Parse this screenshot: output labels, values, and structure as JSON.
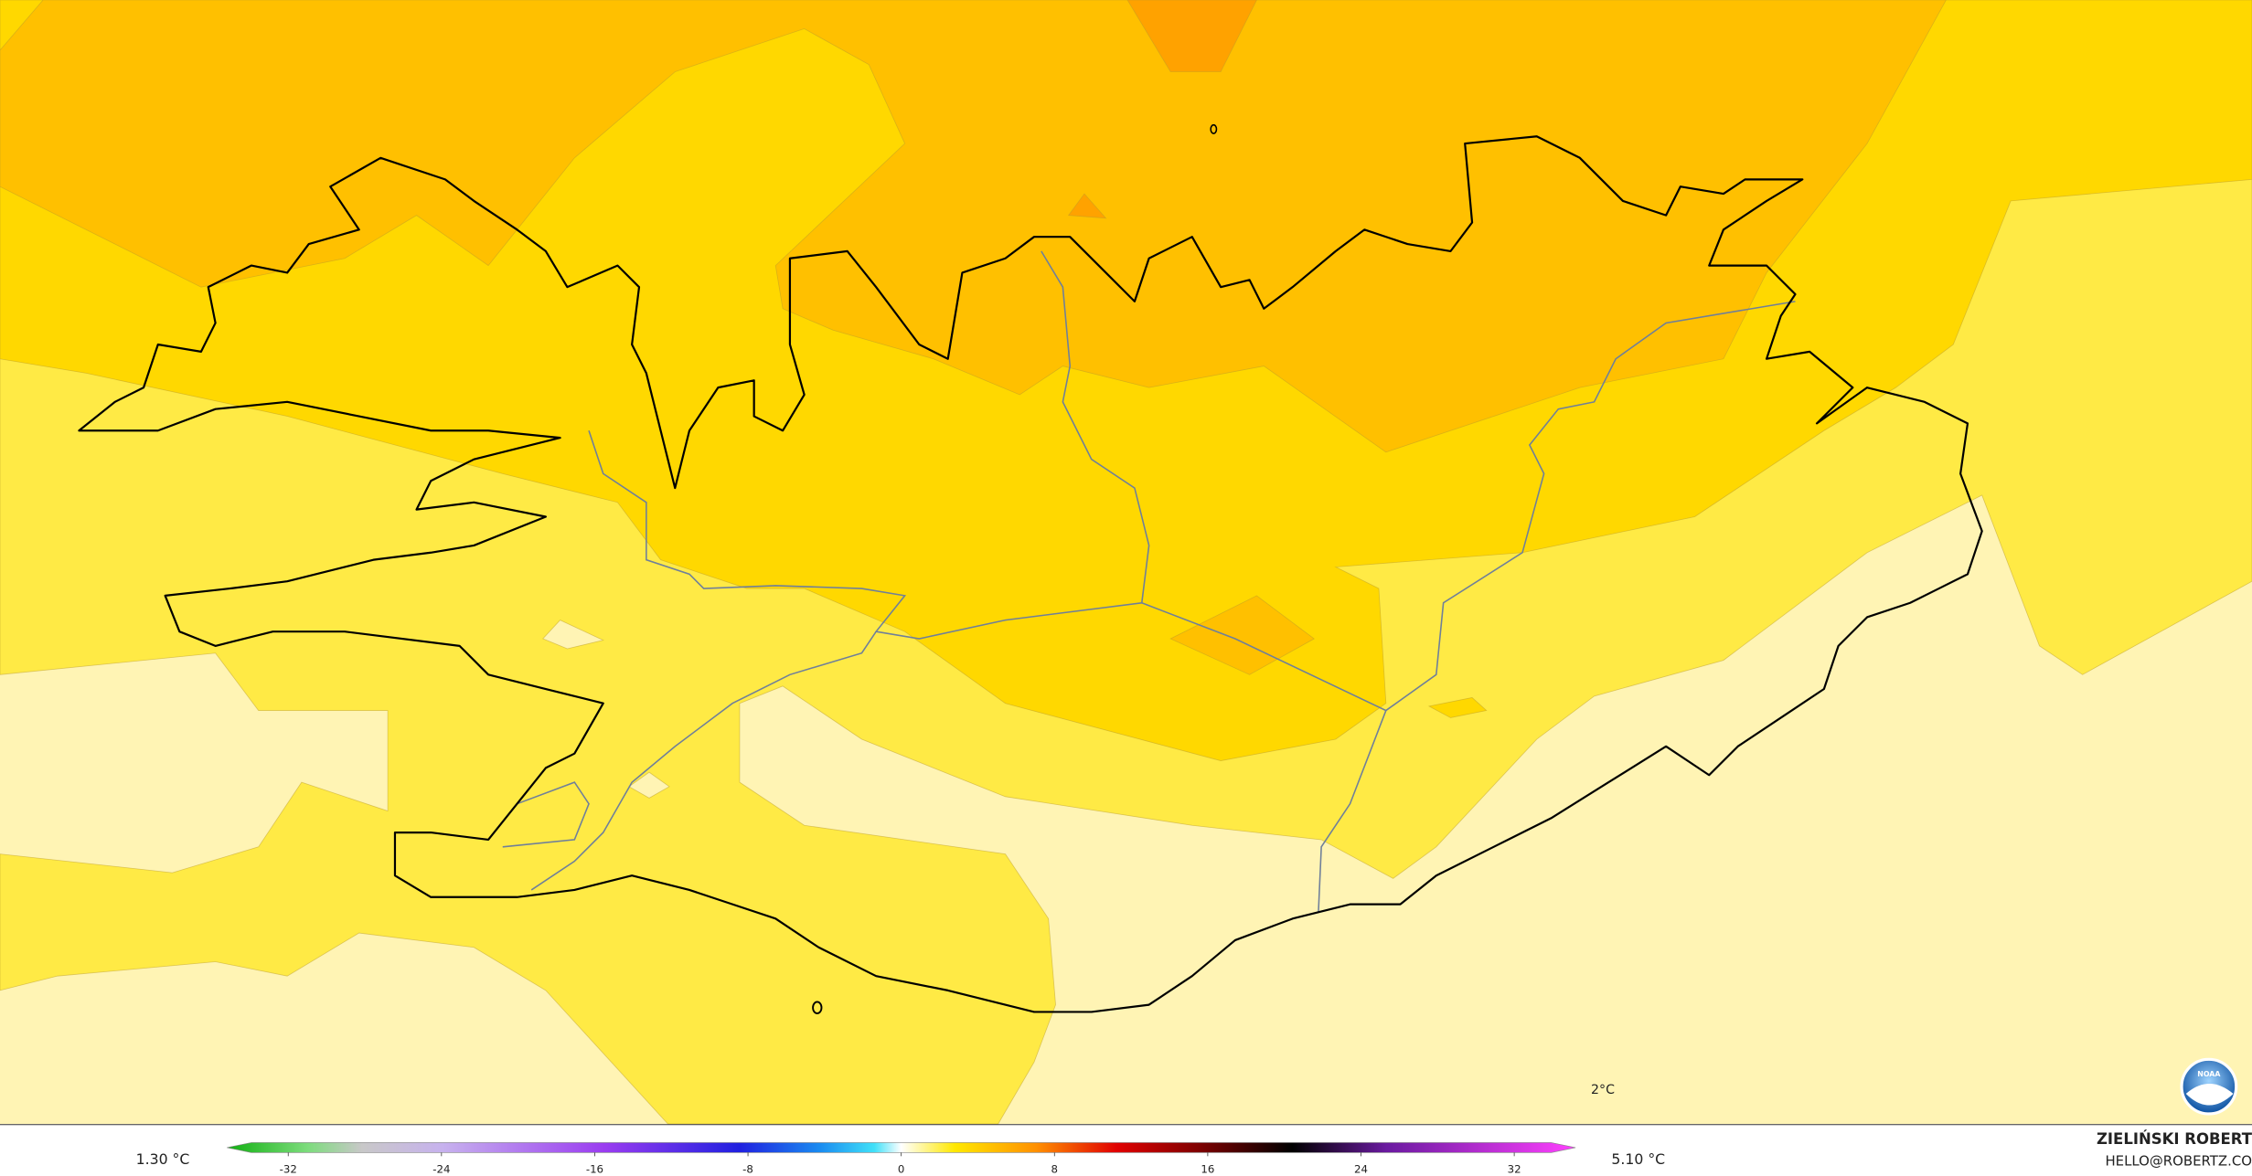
{
  "map": {
    "contour_label": "2°C",
    "logo": "NOAA"
  },
  "colorbar": {
    "min_label": "1.30 °C",
    "max_label": "5.10 °C",
    "lim": [
      -35.2,
      35.2
    ],
    "ticks": [
      -32,
      -24,
      -16,
      -8,
      0,
      8,
      16,
      24,
      32
    ]
  },
  "credit": {
    "name": "ZIELIŃSKI ROBERT",
    "email": "HELLO@ROBERTZ.CO"
  }
}
